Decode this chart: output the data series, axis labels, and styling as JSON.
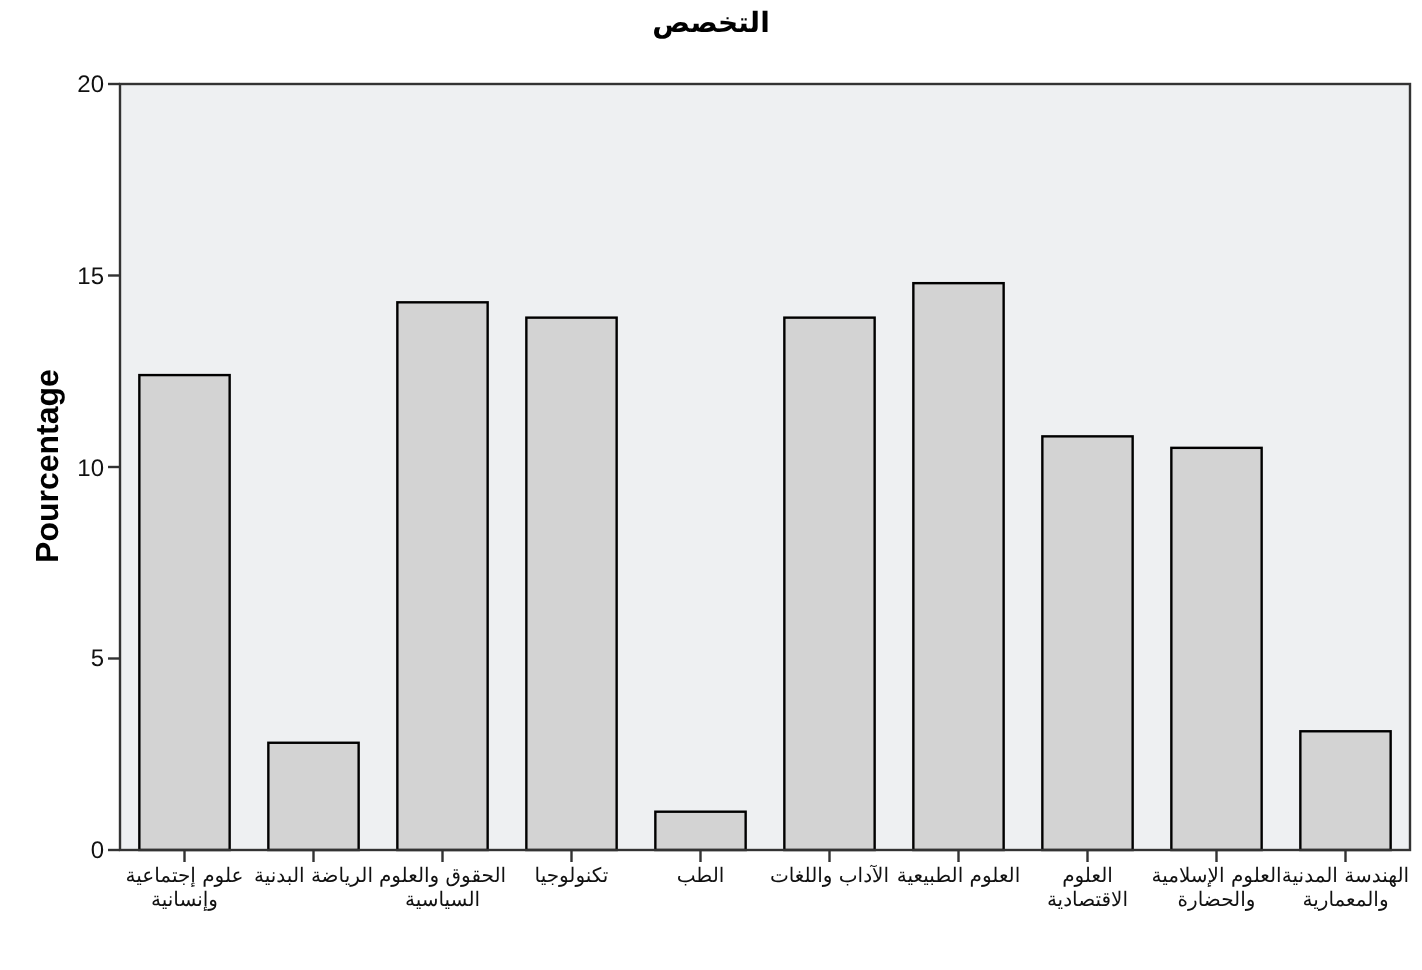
{
  "chart_data": {
    "type": "bar",
    "title": "التخصص",
    "ylabel": "Pourcentage",
    "categories": [
      "علوم إجتماعية وإنسانية",
      "الرياضة البدنية",
      "الحقوق والعلوم السياسية",
      "تكنولوجيا",
      "الطب",
      "الآداب واللغات",
      "العلوم الطبيعية",
      "العلوم الاقتصادية",
      "العلوم الإسلامية والحضارة",
      "الهندسة المدنية والمعمارية"
    ],
    "values": [
      12.4,
      2.8,
      14.3,
      13.9,
      1.0,
      13.9,
      14.8,
      10.8,
      10.5,
      3.1
    ],
    "color": "#d3d3d3",
    "ylim": [
      0,
      20
    ],
    "yticks": [
      0,
      5,
      10,
      15,
      20
    ]
  }
}
